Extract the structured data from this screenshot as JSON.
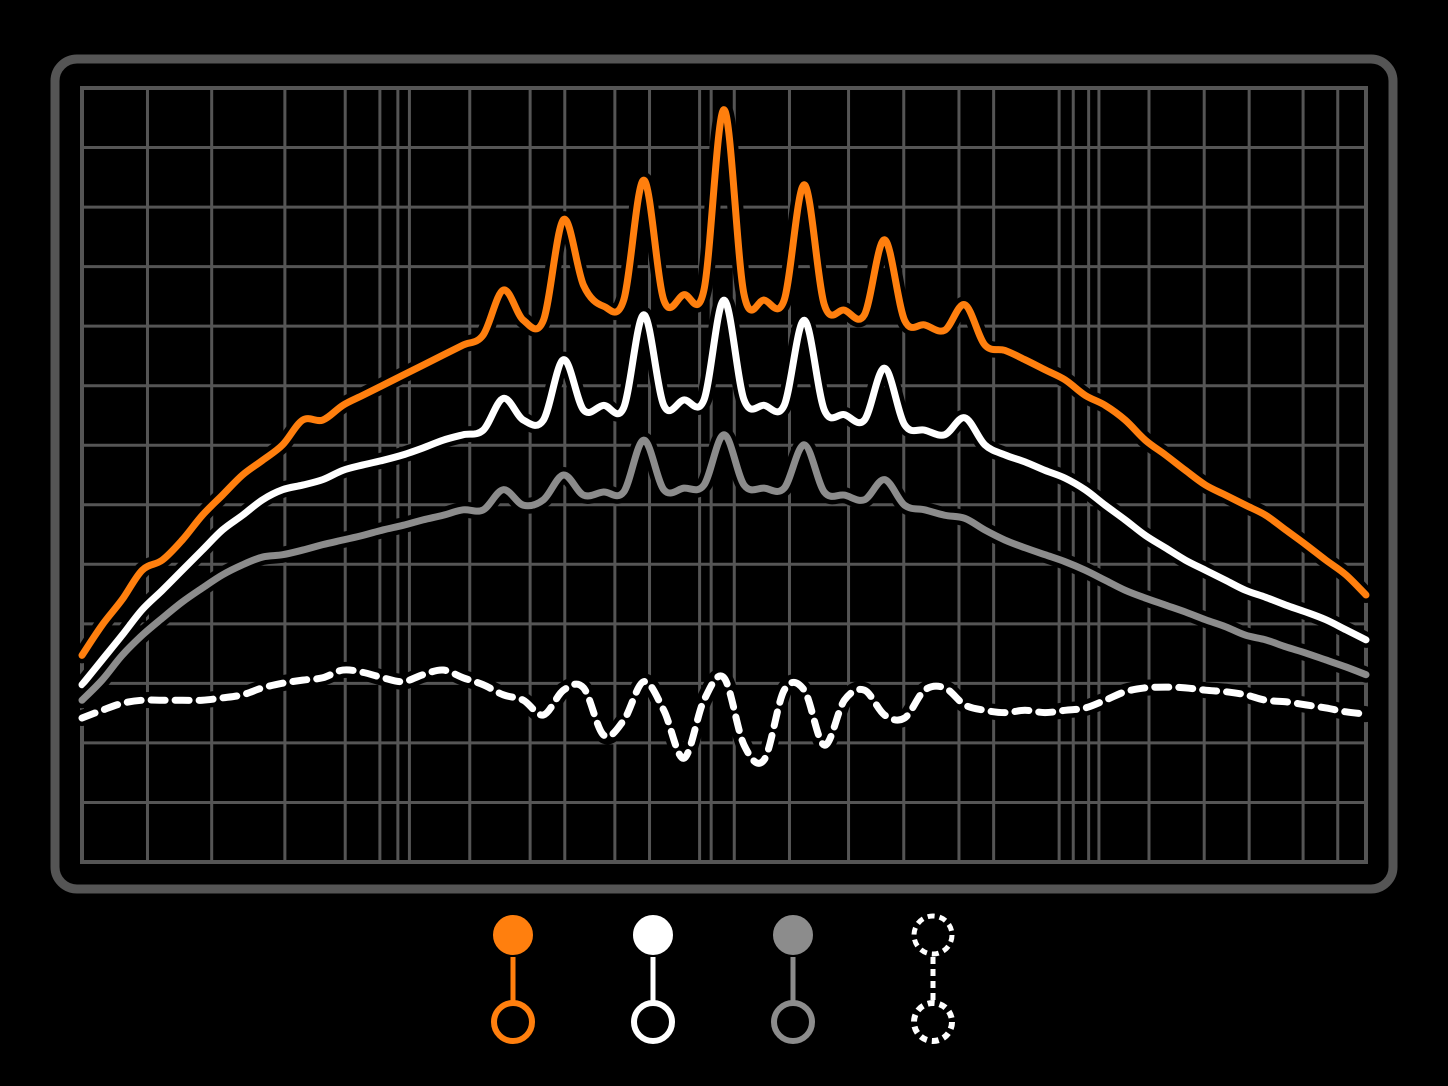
{
  "chart_data": {
    "type": "line",
    "x": [
      0,
      1,
      2,
      3,
      4,
      5,
      6,
      7,
      8,
      9,
      10,
      11,
      12,
      13,
      14,
      15,
      16,
      17,
      18,
      19,
      20,
      21,
      22,
      23,
      24,
      25,
      26,
      27,
      28,
      29,
      30,
      31,
      32,
      33,
      34,
      35,
      36,
      37,
      38,
      39,
      40,
      41,
      42,
      43,
      44,
      45,
      46,
      47,
      48,
      49,
      50,
      51,
      52,
      53,
      54,
      55,
      56,
      57,
      58,
      59,
      60,
      61,
      62,
      63,
      64
    ],
    "xlim": [
      0,
      64
    ],
    "ylim": [
      0,
      100
    ],
    "grid": true,
    "series": [
      {
        "color": "#ff7f0e",
        "dashed": false,
        "values": [
          26.7,
          30.6,
          33.9,
          37.7,
          39.0,
          41.6,
          44.8,
          47.4,
          50.0,
          51.9,
          53.9,
          57.1,
          57.1,
          59.0,
          60.3,
          61.6,
          62.9,
          64.2,
          65.5,
          66.8,
          68.1,
          73.9,
          70.0,
          70.0,
          83.0,
          74.5,
          71.8,
          72.6,
          88.1,
          72.6,
          73.3,
          73.9,
          97.2,
          73.3,
          72.6,
          72.6,
          87.5,
          72.0,
          71.3,
          70.7,
          80.4,
          70.0,
          69.4,
          68.7,
          72.0,
          66.8,
          66.1,
          64.9,
          63.6,
          62.3,
          60.3,
          59.0,
          57.1,
          54.5,
          52.6,
          50.6,
          48.7,
          47.4,
          46.1,
          44.8,
          42.9,
          41.0,
          39.0,
          37.1,
          34.5
        ]
      },
      {
        "color": "#ffffff",
        "dashed": false,
        "values": [
          22.9,
          26.1,
          29.3,
          32.6,
          35.1,
          37.7,
          40.3,
          42.9,
          44.8,
          46.8,
          48.1,
          48.7,
          49.4,
          50.6,
          51.3,
          51.9,
          52.6,
          53.5,
          54.5,
          55.2,
          55.8,
          59.9,
          57.1,
          57.1,
          64.9,
          58.4,
          59.0,
          58.7,
          70.7,
          59.0,
          59.7,
          59.7,
          72.6,
          59.7,
          59.0,
          59.0,
          70.0,
          58.4,
          57.8,
          57.1,
          63.8,
          56.5,
          55.8,
          55.2,
          57.4,
          53.9,
          52.6,
          51.7,
          50.6,
          49.6,
          48.1,
          46.1,
          44.2,
          42.2,
          40.6,
          39.0,
          37.7,
          36.4,
          35.1,
          34.2,
          33.2,
          32.3,
          31.3,
          30.0,
          28.7
        ]
      },
      {
        "color": "#8c8c8c",
        "dashed": false,
        "values": [
          20.9,
          23.5,
          26.7,
          29.3,
          31.5,
          33.6,
          35.4,
          37.1,
          38.4,
          39.4,
          39.7,
          40.3,
          41.0,
          41.6,
          42.2,
          42.9,
          43.5,
          44.2,
          44.8,
          45.5,
          45.5,
          48.1,
          46.1,
          46.8,
          50.0,
          47.4,
          47.8,
          47.8,
          54.5,
          48.1,
          48.3,
          48.7,
          55.2,
          48.7,
          48.3,
          48.3,
          53.9,
          47.8,
          47.4,
          46.8,
          49.4,
          46.1,
          45.5,
          44.8,
          44.4,
          42.9,
          41.6,
          40.6,
          39.7,
          38.8,
          37.7,
          36.4,
          35.1,
          34.1,
          33.2,
          32.3,
          31.3,
          30.4,
          29.3,
          28.7,
          27.8,
          27.0,
          26.1,
          25.2,
          24.2
        ]
      },
      {
        "color": "#ffffff",
        "dashed": true,
        "values": [
          18.6,
          19.6,
          20.5,
          20.9,
          20.9,
          20.9,
          20.9,
          21.2,
          21.6,
          22.5,
          23.1,
          23.5,
          23.8,
          24.8,
          24.5,
          23.8,
          23.3,
          24.2,
          24.8,
          23.8,
          22.9,
          21.6,
          20.9,
          19.0,
          22.2,
          22.5,
          16.4,
          18.3,
          23.3,
          19.6,
          13.4,
          20.9,
          23.8,
          15.1,
          13.2,
          22.2,
          22.2,
          15.1,
          20.9,
          22.2,
          19.0,
          18.6,
          22.2,
          22.5,
          20.3,
          19.6,
          19.3,
          19.6,
          19.3,
          19.6,
          19.9,
          20.9,
          22.0,
          22.5,
          22.6,
          22.5,
          22.2,
          22.0,
          21.6,
          20.9,
          20.7,
          20.3,
          19.9,
          19.4,
          19.1
        ]
      }
    ]
  }
}
